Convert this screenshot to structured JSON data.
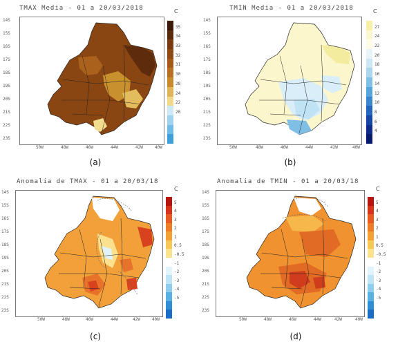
{
  "panels": [
    {
      "id": "a",
      "title": "TMAX Media - 01 a 20/03/2018",
      "caption": "(a)",
      "unit": "C",
      "lat_labels": [
        "14S",
        "15S",
        "16S",
        "17S",
        "18S",
        "19S",
        "20S",
        "21S",
        "22S",
        "23S"
      ],
      "lon_labels": [
        "50W",
        "48W",
        "46W",
        "44W",
        "42W",
        "40W"
      ],
      "colorbar": {
        "labels": [
          "35",
          "34",
          "33",
          "32",
          "31",
          "30",
          "28",
          "24",
          "22",
          "20"
        ],
        "colors": [
          "#3b1a08",
          "#5a2a0c",
          "#7a3a10",
          "#8f4a14",
          "#a55a1a",
          "#b87022",
          "#c98a2e",
          "#e0b458",
          "#f0d98a",
          "#cce9f5",
          "#9fd3ef",
          "#6fbde6",
          "#3f9fd8"
        ]
      }
    },
    {
      "id": "b",
      "title": "TMIN Media - 01 a 20/03/2018",
      "caption": "(b)",
      "unit": "C",
      "lat_labels": [
        "14S",
        "15S",
        "16S",
        "17S",
        "18S",
        "19S",
        "20S",
        "21S",
        "22S",
        "23S"
      ],
      "lon_labels": [
        "50W",
        "48W",
        "46W",
        "44W",
        "42W",
        "40W"
      ],
      "colorbar": {
        "labels": [
          "27",
          "24",
          "22",
          "20",
          "18",
          "16",
          "14",
          "12",
          "10",
          "8",
          "6",
          "4"
        ],
        "colors": [
          "#f7f0a8",
          "#fbf7cf",
          "#fefbe6",
          "#e8f4fa",
          "#cde8f5",
          "#aad6ee",
          "#7fc0e6",
          "#57a5dc",
          "#3a86cf",
          "#2465bd",
          "#1747a6",
          "#0f2c8c",
          "#081a6e"
        ]
      }
    },
    {
      "id": "c",
      "title": "Anomalia de TMAX - 01 a 20/03/18",
      "caption": "(c)",
      "unit": "C",
      "lat_labels": [
        "14S",
        "15S",
        "16S",
        "17S",
        "18S",
        "19S",
        "20S",
        "21S",
        "22S",
        "23S"
      ],
      "lon_labels": [
        "50W",
        "48W",
        "46W",
        "44W",
        "42W",
        "40W"
      ],
      "colorbar": {
        "labels": [
          "5",
          "4",
          "3",
          "2",
          "1",
          "0.5",
          "-0.5",
          "-1",
          "-2",
          "-3",
          "-4",
          "-5"
        ],
        "colors": [
          "#b8140e",
          "#d8321a",
          "#e85a20",
          "#f07d26",
          "#f5a132",
          "#f8c855",
          "#fbe38d",
          "#ffffff",
          "#e1f3fb",
          "#bfe4f5",
          "#8fcdee",
          "#58b0e3",
          "#2e8ed6",
          "#1a6cc4"
        ]
      }
    },
    {
      "id": "d",
      "title": "Anomalia de TMIN - 01 a 20/03/18",
      "caption": "(d)",
      "unit": "C",
      "lat_labels": [
        "14S",
        "15S",
        "16S",
        "17S",
        "18S",
        "19S",
        "20S",
        "21S",
        "22S",
        "23S"
      ],
      "lon_labels": [
        "50W",
        "48W",
        "46W",
        "44W",
        "42W",
        "40W"
      ],
      "colorbar": {
        "labels": [
          "5",
          "4",
          "3",
          "2",
          "1",
          "0.5",
          "-0.5",
          "-1",
          "-2",
          "-3",
          "-4",
          "-5"
        ],
        "colors": [
          "#b8140e",
          "#d8321a",
          "#e85a20",
          "#f07d26",
          "#f5a132",
          "#f8c855",
          "#fbe38d",
          "#ffffff",
          "#e1f3fb",
          "#bfe4f5",
          "#8fcdee",
          "#58b0e3",
          "#2e8ed6",
          "#1a6cc4"
        ]
      }
    }
  ],
  "map_fills": {
    "a": {
      "base": "#8a4612",
      "patches": [
        "#5e2c0c",
        "#a9611c",
        "#c9902e",
        "#e3bc5e",
        "#f2dc8d"
      ]
    },
    "b": {
      "base": "#fbf6cb",
      "patches": [
        "#d9eef8",
        "#bfe2f4",
        "#9fd2ee",
        "#7fbfe6",
        "#f3ec9e"
      ]
    },
    "c": {
      "base": "#f2a03a",
      "patches": [
        "#e7722a",
        "#d8421e",
        "#fbe08e",
        "#ffffff",
        "#e0f2fa"
      ]
    },
    "d": {
      "base": "#f0922f",
      "patches": [
        "#e16a24",
        "#cf3d1c",
        "#f6b84a",
        "#fbe08e",
        "#ffffff"
      ]
    }
  }
}
